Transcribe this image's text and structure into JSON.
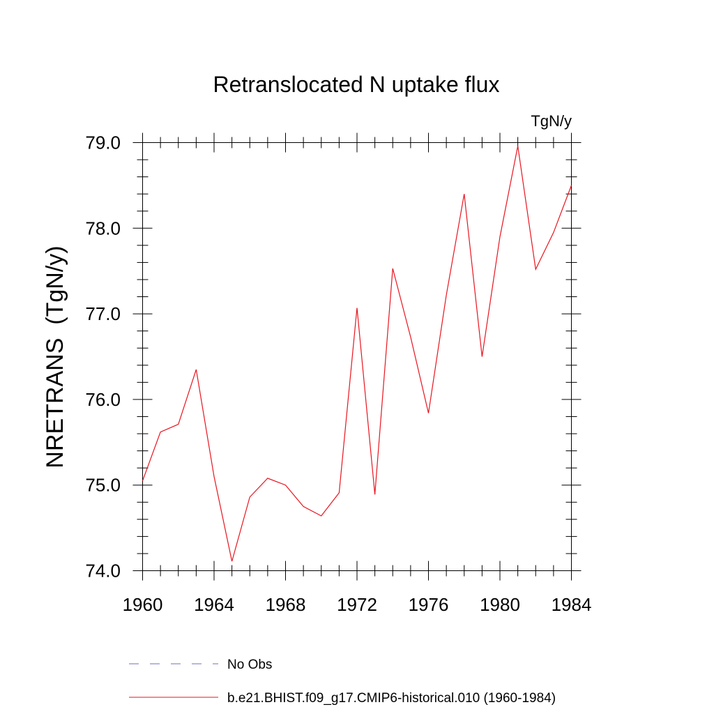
{
  "chart_data": {
    "type": "line",
    "title": "Retranslocated N uptake flux",
    "units": "TgN/y",
    "ylabel": "NRETRANS  (TgN/y)",
    "xlabel": "",
    "xlim": [
      1960,
      1984
    ],
    "ylim": [
      74.0,
      79.0
    ],
    "xticks": [
      1960,
      1964,
      1968,
      1972,
      1976,
      1980,
      1984
    ],
    "xtick_labels": [
      "1960",
      "1964",
      "1968",
      "1972",
      "1976",
      "1980",
      "1984"
    ],
    "yticks": [
      74.0,
      75.0,
      76.0,
      77.0,
      78.0,
      79.0
    ],
    "ytick_labels": [
      "74.0",
      "75.0",
      "76.0",
      "77.0",
      "78.0",
      "79.0"
    ],
    "grid": false,
    "legend_position": "bottom",
    "series": [
      {
        "name": "No Obs",
        "color": "#6f6fbf",
        "style": "dashed",
        "x": [],
        "values": []
      },
      {
        "name": "b.e21.BHIST.f09_g17.CMIP6-historical.010 (1960-1984)",
        "color": "#e8141e",
        "style": "solid",
        "x": [
          1960,
          1961,
          1962,
          1963,
          1964,
          1965,
          1966,
          1967,
          1968,
          1969,
          1970,
          1971,
          1972,
          1973,
          1974,
          1975,
          1976,
          1977,
          1978,
          1979,
          1980,
          1981,
          1982,
          1983,
          1984
        ],
        "values": [
          75.05,
          75.62,
          75.71,
          76.35,
          75.1,
          74.11,
          74.86,
          75.08,
          75.0,
          74.75,
          74.64,
          74.91,
          77.07,
          74.89,
          77.53,
          76.73,
          75.84,
          77.22,
          78.4,
          76.5,
          77.9,
          78.96,
          77.52,
          77.95,
          78.5
        ]
      }
    ]
  }
}
